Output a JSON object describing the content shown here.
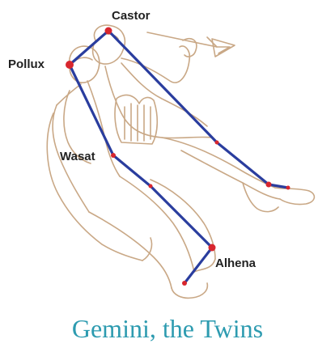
{
  "caption": "Gemini, the Twins",
  "stars": {
    "castor": "Castor",
    "pollux": "Pollux",
    "wasat": "Wasat",
    "alhena": "Alhena"
  },
  "colors": {
    "constellation_line": "#2a3d9e",
    "star_dot": "#d8262e",
    "figure_outline": "#c9a886",
    "caption": "#2d9bb0"
  }
}
